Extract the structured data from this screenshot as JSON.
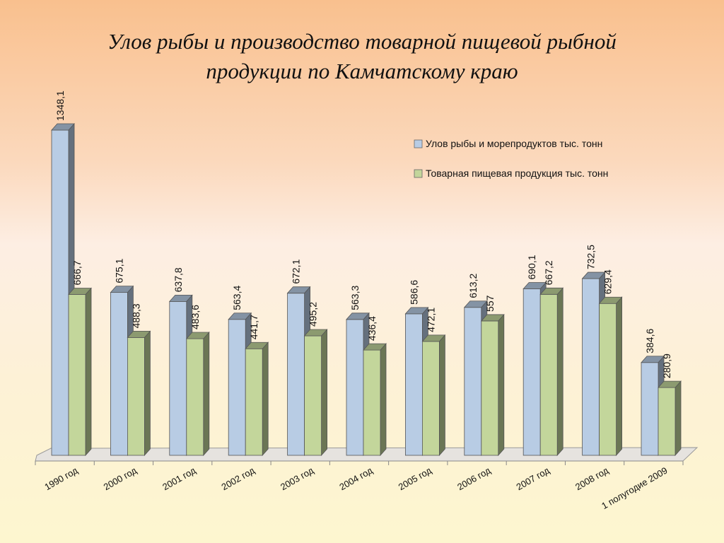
{
  "page": {
    "title_line1": "Улов рыбы и производство товарной пищевой рыбной",
    "title_line2": "продукции по Камчатскому краю"
  },
  "chart_data": {
    "type": "bar",
    "title": "Улов рыбы и производство товарной пищевой рыбной продукции по Камчатскому краю",
    "categories": [
      "1990 год",
      "2000 год",
      "2001 год",
      "2002 год",
      "2003 год",
      "2004 год",
      "2005 год",
      "2006 год",
      "2007 год",
      "2008 год",
      "1 полугодие 2009"
    ],
    "series": [
      {
        "name": "Улов рыбы и морепродуктов тыс. тонн",
        "values": [
          1348.1,
          675.1,
          637.8,
          563.4,
          672.1,
          563.3,
          586.6,
          613.2,
          690.1,
          732.5,
          384.6
        ],
        "labels": [
          "1348,1",
          "675,1",
          "637,8",
          "563,4",
          "672,1",
          "563,3",
          "586,6",
          "613,2",
          "690,1",
          "732,5",
          "384,6"
        ],
        "color": "#b8cce4"
      },
      {
        "name": "Товарная пищевая продукция тыс. тонн",
        "values": [
          666.7,
          488.3,
          483.6,
          441.7,
          495.2,
          436.4,
          472.1,
          557,
          667.2,
          629.4,
          280.9
        ],
        "labels": [
          "666,7",
          "488,3",
          "483,6",
          "441,7",
          "495,2",
          "436,4",
          "472,1",
          "557",
          "667,2",
          "629,4",
          "280,9"
        ],
        "color": "#c3d69b"
      }
    ],
    "ylim": [
      0,
      1400
    ],
    "grid": false,
    "legend_position": "top-right",
    "style": "3d-clustered-column"
  }
}
